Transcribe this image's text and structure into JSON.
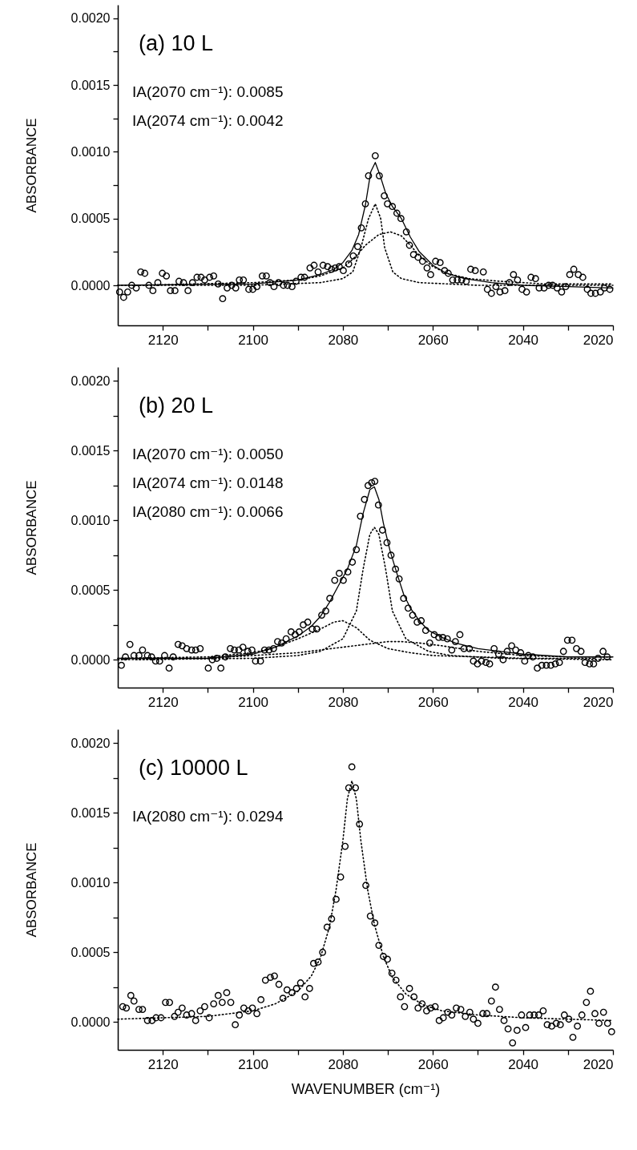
{
  "chart_data": [
    {
      "type": "scatter",
      "title": "(a) 10 L",
      "ylabel": "ABSORBANCE",
      "annotations": [
        "IA(2070 cm⁻¹): 0.0085",
        "IA(2074 cm⁻¹): 0.0042"
      ],
      "xlim": [
        2130,
        2020
      ],
      "ylim": [
        -0.0003,
        0.0021
      ],
      "xticks": [
        {
          "value": 2120,
          "label": "2120"
        },
        {
          "value": 2110,
          "label": null
        },
        {
          "value": 2100,
          "label": "2100"
        },
        {
          "value": 2090,
          "label": null
        },
        {
          "value": 2080,
          "label": "2080"
        },
        {
          "value": 2070,
          "label": null
        },
        {
          "value": 2060,
          "label": "2060"
        },
        {
          "value": 2050,
          "label": null
        },
        {
          "value": 2040,
          "label": "2040"
        },
        {
          "value": 2030,
          "label": null
        },
        {
          "value": 2020,
          "label": "2020"
        }
      ],
      "yticks": [
        {
          "value": 0,
          "label": "0.0000"
        },
        {
          "value": 0.00025,
          "label": null
        },
        {
          "value": 0.0005,
          "label": "0.0005"
        },
        {
          "value": 0.00075,
          "label": null
        },
        {
          "value": 0.001,
          "label": "0.0010"
        },
        {
          "value": 0.00125,
          "label": null
        },
        {
          "value": 0.0015,
          "label": "0.0015"
        },
        {
          "value": 0.00175,
          "label": null
        },
        {
          "value": 0.002,
          "label": "0.0020"
        }
      ],
      "series": [
        {
          "marker": "circle",
          "color": "#000000",
          "x": [
            2129.6,
            2128.7,
            2127.8,
            2126.9,
            2125.9,
            2124.9,
            2124.0,
            2123.1,
            2122.2,
            2121.1,
            2120.1,
            2119.2,
            2118.3,
            2117.3,
            2116.4,
            2115.4,
            2114.4,
            2113.4,
            2112.4,
            2111.5,
            2110.7,
            2109.6,
            2108.7,
            2107.7,
            2106.7,
            2105.7,
            2104.7,
            2103.8,
            2103.0,
            2102.1,
            2100.9,
            2100.0,
            2099.1,
            2097.9,
            2097.0,
            2096.2,
            2095.3,
            2094.3,
            2093.2,
            2092.3,
            2091.3,
            2090.4,
            2089.3,
            2088.5,
            2087.3,
            2086.4,
            2085.5,
            2084.4,
            2083.4,
            2082.5,
            2081.7,
            2080.8,
            2079.9,
            2078.7,
            2077.7,
            2076.7,
            2075.9,
            2075.0,
            2074.3,
            2072.8,
            2071.9,
            2070.8,
            2070.1,
            2069.0,
            2068.0,
            2067.1,
            2065.9,
            2065.2,
            2064.3,
            2063.3,
            2062.3,
            2061.3,
            2060.5,
            2059.4,
            2058.4,
            2057.4,
            2056.6,
            2055.6,
            2054.6,
            2053.6,
            2052.6,
            2051.6,
            2050.6,
            2048.8,
            2047.9,
            2047.0,
            2046.0,
            2045.1,
            2044.0,
            2043.0,
            2042.1,
            2041.2,
            2040.2,
            2039.2,
            2038.2,
            2037.2,
            2036.4,
            2035.3,
            2034.3,
            2033.4,
            2032.4,
            2031.4,
            2030.5,
            2029.6,
            2028.7,
            2027.7,
            2026.7,
            2025.7,
            2024.9,
            2023.9,
            2022.8,
            2021.9,
            2020.7
          ],
          "values": [
            -5e-05,
            -9e-05,
            -5e-05,
            0,
            -2e-05,
            0.0001,
            9e-05,
            0,
            -4e-05,
            2e-05,
            9e-05,
            7e-05,
            -4e-05,
            -4e-05,
            3e-05,
            2e-05,
            -4e-05,
            2e-05,
            6e-05,
            6e-05,
            4e-05,
            6e-05,
            7e-05,
            1e-05,
            -0.0001,
            -2e-05,
            0,
            -2e-05,
            4e-05,
            4e-05,
            -3e-05,
            -3e-05,
            -1e-05,
            7e-05,
            7e-05,
            2e-05,
            -1e-05,
            2e-05,
            0,
            0,
            -1e-05,
            3e-05,
            6e-05,
            6e-05,
            0.00013,
            0.00015,
            0.0001,
            0.00015,
            0.00014,
            0.00012,
            0.00013,
            0.00014,
            0.00011,
            0.00016,
            0.00022,
            0.00029,
            0.00043,
            0.00061,
            0.00082,
            0.00097,
            0.00082,
            0.00067,
            0.00061,
            0.00059,
            0.00054,
            0.0005,
            0.0004,
            0.0003,
            0.00023,
            0.00021,
            0.00018,
            0.00013,
            8e-05,
            0.00018,
            0.00017,
            0.00011,
            9e-05,
            4e-05,
            4e-05,
            4e-05,
            3e-05,
            0.00012,
            0.00011,
            0.0001,
            -3e-05,
            -6e-05,
            -1e-05,
            -5e-05,
            -4e-05,
            2e-05,
            8e-05,
            4e-05,
            -3e-05,
            -5e-05,
            6e-05,
            5e-05,
            -2e-05,
            -2e-05,
            0,
            0,
            -2e-05,
            -5e-05,
            -1e-05,
            8e-05,
            0.00012,
            8e-05,
            6e-05,
            -3e-05,
            -6e-05,
            -6e-05,
            -5e-05,
            -2e-05,
            -3e-05
          ]
        },
        {
          "type": "line",
          "line_style": "solid",
          "color": "#000000",
          "x": [
            2130,
            2100,
            2090,
            2085,
            2082,
            2080,
            2078,
            2076.5,
            2075,
            2073.8,
            2072.8,
            2071.8,
            2070.5,
            2069,
            2067,
            2065,
            2063,
            2060,
            2057,
            2053,
            2047,
            2040,
            2030,
            2020
          ],
          "values": [
            0,
            1e-05,
            4e-05,
            8e-05,
            0.00012,
            0.00017,
            0.00026,
            0.00038,
            0.0006,
            0.00085,
            0.00092,
            0.00083,
            0.00069,
            0.00059,
            0.0005,
            0.00036,
            0.00025,
            0.00015,
            9e-05,
            5e-05,
            2e-05,
            0,
            -1e-05,
            -2e-05
          ]
        },
        {
          "type": "line",
          "line_style": "dotted",
          "color": "#000000",
          "x": [
            2130,
            2100,
            2085,
            2080,
            2077.8,
            2076,
            2074.3,
            2072.8,
            2071.6,
            2070.7,
            2068.9,
            2067,
            2063,
            2050,
            2020
          ],
          "values": [
            0,
            0,
            2e-05,
            5e-05,
            0.0001,
            0.00028,
            0.0005,
            0.00061,
            0.0005,
            0.00028,
            0.0001,
            5e-05,
            2e-05,
            0,
            0
          ]
        },
        {
          "type": "line",
          "line_style": "dotted",
          "color": "#000000",
          "x": [
            2126,
            2100,
            2090,
            2085,
            2080,
            2077,
            2075,
            2072,
            2069.4,
            2067,
            2065,
            2063,
            2060,
            2057,
            2052,
            2045,
            2035,
            2020
          ],
          "values": [
            0,
            2e-05,
            4e-05,
            7e-05,
            0.00013,
            0.00022,
            0.0003,
            0.00038,
            0.0004,
            0.00037,
            0.0003,
            0.00022,
            0.00014,
            9e-05,
            5e-05,
            3e-05,
            1e-05,
            1e-05
          ]
        }
      ]
    },
    {
      "type": "scatter",
      "title": "(b) 20 L",
      "ylabel": "ABSORBANCE",
      "annotations": [
        "IA(2070 cm⁻¹): 0.0050",
        "IA(2074 cm⁻¹): 0.0148",
        "IA(2080 cm⁻¹): 0.0066"
      ],
      "xlim": [
        2130,
        2020
      ],
      "ylim": [
        -0.0002,
        0.0021
      ],
      "xticks": [
        {
          "value": 2120,
          "label": "2120"
        },
        {
          "value": 2110,
          "label": null
        },
        {
          "value": 2100,
          "label": "2100"
        },
        {
          "value": 2090,
          "label": null
        },
        {
          "value": 2080,
          "label": "2080"
        },
        {
          "value": 2070,
          "label": null
        },
        {
          "value": 2060,
          "label": "2060"
        },
        {
          "value": 2050,
          "label": null
        },
        {
          "value": 2040,
          "label": "2040"
        },
        {
          "value": 2030,
          "label": null
        },
        {
          "value": 2020,
          "label": "2020"
        }
      ],
      "yticks": [
        {
          "value": 0,
          "label": "0.0000"
        },
        {
          "value": 0.00025,
          "label": null
        },
        {
          "value": 0.0005,
          "label": "0.0005"
        },
        {
          "value": 0.00075,
          "label": null
        },
        {
          "value": 0.001,
          "label": "0.0010"
        },
        {
          "value": 0.00125,
          "label": null
        },
        {
          "value": 0.0015,
          "label": "0.0015"
        },
        {
          "value": 0.00175,
          "label": null
        },
        {
          "value": 0.002,
          "label": "0.0020"
        }
      ],
      "series": [
        {
          "marker": "circle",
          "color": "#000000",
          "x": [
            2129.2,
            2128.3,
            2127.3,
            2126.4,
            2125.3,
            2124.5,
            2123.4,
            2122.5,
            2121.6,
            2120.7,
            2119.6,
            2118.6,
            2117.7,
            2116.6,
            2115.7,
            2114.7,
            2113.6,
            2112.7,
            2111.7,
            2109.9,
            2109.0,
            2108.0,
            2107.1,
            2106.1,
            2105.0,
            2104.1,
            2103.1,
            2102.2,
            2101.1,
            2100.2,
            2099.4,
            2098.3,
            2097.4,
            2096.4,
            2095.4,
            2094.5,
            2093.6,
            2092.6,
            2091.5,
            2090.6,
            2089.7,
            2088.8,
            2087.8,
            2086.8,
            2085.8,
            2084.7,
            2083.8,
            2082.9,
            2081.8,
            2080.8,
            2079.9,
            2078.9,
            2077.9,
            2077.0,
            2076.1,
            2075.2,
            2074.4,
            2073.6,
            2072.9,
            2072.1,
            2071.2,
            2070.2,
            2069.3,
            2068.3,
            2067.5,
            2066.5,
            2065.5,
            2064.5,
            2063.5,
            2062.6,
            2061.6,
            2060.7,
            2059.7,
            2058.7,
            2057.8,
            2056.8,
            2055.8,
            2055.0,
            2054.0,
            2053.1,
            2051.9,
            2051.0,
            2050.1,
            2049.2,
            2048.2,
            2047.4,
            2046.4,
            2045.4,
            2044.4,
            2043.5,
            2042.5,
            2041.6,
            2040.5,
            2039.6,
            2038.8,
            2037.8,
            2036.8,
            2035.8,
            2034.8,
            2033.8,
            2032.8,
            2031.9,
            2031.0,
            2030.1,
            2029.1,
            2028.1,
            2027.1,
            2026.2,
            2025.2,
            2024.3,
            2023.3,
            2022.2,
            2021.3
          ],
          "values": [
            -4e-05,
            2e-05,
            0.00011,
            3e-05,
            3e-05,
            7e-05,
            3e-05,
            2e-05,
            -1e-05,
            -1e-05,
            3e-05,
            -6e-05,
            2e-05,
            0.00011,
            0.0001,
            8e-05,
            7e-05,
            7e-05,
            8e-05,
            -6e-05,
            0,
            1e-05,
            -6e-05,
            2e-05,
            8e-05,
            7e-05,
            7e-05,
            9e-05,
            6e-05,
            7e-05,
            -1e-05,
            -1e-05,
            7e-05,
            7e-05,
            8e-05,
            0.00013,
            0.00012,
            0.00015,
            0.0002,
            0.00018,
            0.0002,
            0.00025,
            0.00027,
            0.00022,
            0.00022,
            0.00032,
            0.00035,
            0.00044,
            0.00057,
            0.00062,
            0.00057,
            0.00063,
            0.0007,
            0.00079,
            0.00103,
            0.00115,
            0.00125,
            0.00127,
            0.00128,
            0.00111,
            0.00093,
            0.00084,
            0.00075,
            0.00065,
            0.00058,
            0.00044,
            0.00037,
            0.00032,
            0.00027,
            0.00028,
            0.00021,
            0.00012,
            0.00018,
            0.00016,
            0.00016,
            0.00015,
            7e-05,
            0.00013,
            0.00018,
            8e-05,
            8e-05,
            -1e-05,
            -3e-05,
            -1e-05,
            -2e-05,
            -3e-05,
            8e-05,
            4e-05,
            0,
            6e-05,
            0.0001,
            7e-05,
            5e-05,
            -1e-05,
            3e-05,
            2e-05,
            -6e-05,
            -4e-05,
            -4e-05,
            -4e-05,
            -3e-05,
            -2e-05,
            6e-05,
            0.00014,
            0.00014,
            8e-05,
            6e-05,
            -2e-05,
            -3e-05,
            -3e-05,
            1e-05,
            6e-05,
            2e-05
          ]
        },
        {
          "type": "line",
          "line_style": "solid",
          "color": "#000000",
          "x": [
            2130,
            2110,
            2100,
            2095,
            2090,
            2087,
            2085,
            2083,
            2081,
            2079,
            2077,
            2075.5,
            2074,
            2073,
            2072,
            2071,
            2069.5,
            2068,
            2066.5,
            2065,
            2063,
            2061,
            2058,
            2055,
            2050,
            2045,
            2040,
            2030,
            2020
          ],
          "values": [
            1e-05,
            1e-05,
            4e-05,
            9e-05,
            0.00017,
            0.00024,
            0.00031,
            0.00041,
            0.00053,
            0.00065,
            0.00082,
            0.00105,
            0.00122,
            0.00124,
            0.00115,
            0.00098,
            0.00078,
            0.00062,
            0.00047,
            0.00037,
            0.00028,
            0.00021,
            0.00016,
            0.00012,
            8e-05,
            6e-05,
            4e-05,
            2e-05,
            2e-05
          ]
        },
        {
          "type": "line",
          "line_style": "dotted",
          "color": "#000000",
          "x": [
            2130,
            2100,
            2090,
            2085,
            2080,
            2077,
            2075.5,
            2074,
            2073,
            2072,
            2070.5,
            2069,
            2066,
            2061,
            2056,
            2045,
            2020
          ],
          "values": [
            0,
            1e-05,
            3e-05,
            6e-05,
            0.00015,
            0.00035,
            0.00065,
            0.0009,
            0.00095,
            0.0009,
            0.00065,
            0.00035,
            0.00015,
            6e-05,
            3e-05,
            1e-05,
            0
          ]
        },
        {
          "type": "line",
          "line_style": "dotted",
          "color": "#000000",
          "x": [
            2130,
            2110,
            2100,
            2095,
            2090,
            2085,
            2082,
            2080,
            2077,
            2074,
            2070,
            2065,
            2060,
            2050,
            2040,
            2024
          ],
          "values": [
            1e-05,
            2e-05,
            5e-05,
            9e-05,
            0.00015,
            0.00022,
            0.00027,
            0.00028,
            0.00023,
            0.00014,
            8e-05,
            5e-05,
            3e-05,
            2e-05,
            1e-05,
            1e-05
          ]
        },
        {
          "type": "line",
          "line_style": "dotted",
          "color": "#000000",
          "x": [
            2126,
            2110,
            2100,
            2090,
            2080,
            2075,
            2070,
            2067,
            2063,
            2058,
            2050,
            2040,
            2030,
            2020
          ],
          "values": [
            0,
            1e-05,
            3e-05,
            5e-05,
            9e-05,
            0.00011,
            0.00013,
            0.00013,
            0.00012,
            0.0001,
            6e-05,
            3e-05,
            2e-05,
            2e-05
          ]
        }
      ]
    },
    {
      "type": "scatter",
      "title": "(c) 10000 L",
      "xlabel": "WAVENUMBER (cm⁻¹)",
      "ylabel": "ABSORBANCE",
      "annotations": [
        "IA(2080 cm⁻¹): 0.0294"
      ],
      "xlim": [
        2130,
        2020
      ],
      "ylim": [
        -0.0002,
        0.0021
      ],
      "xticks": [
        {
          "value": 2120,
          "label": "2120"
        },
        {
          "value": 2110,
          "label": null
        },
        {
          "value": 2100,
          "label": "2100"
        },
        {
          "value": 2090,
          "label": null
        },
        {
          "value": 2080,
          "label": "2080"
        },
        {
          "value": 2070,
          "label": null
        },
        {
          "value": 2060,
          "label": "2060"
        },
        {
          "value": 2050,
          "label": null
        },
        {
          "value": 2040,
          "label": "2040"
        },
        {
          "value": 2030,
          "label": null
        },
        {
          "value": 2020,
          "label": "2020"
        }
      ],
      "yticks": [
        {
          "value": 0,
          "label": "0.0000"
        },
        {
          "value": 0.00025,
          "label": null
        },
        {
          "value": 0.0005,
          "label": "0.0005"
        },
        {
          "value": 0.00075,
          "label": null
        },
        {
          "value": 0.001,
          "label": "0.0010"
        },
        {
          "value": 0.00125,
          "label": null
        },
        {
          "value": 0.0015,
          "label": "0.0015"
        },
        {
          "value": 0.00175,
          "label": null
        },
        {
          "value": 0.002,
          "label": "0.0020"
        }
      ],
      "series": [
        {
          "marker": "circle",
          "color": "#000000",
          "x": [
            2128.9,
            2128.1,
            2127.1,
            2126.4,
            2125.3,
            2124.5,
            2123.4,
            2122.4,
            2121.5,
            2120.4,
            2119.4,
            2118.5,
            2117.4,
            2116.6,
            2115.7,
            2114.7,
            2113.6,
            2112.7,
            2111.7,
            2110.7,
            2109.7,
            2108.7,
            2107.7,
            2106.8,
            2105.8,
            2104.9,
            2103.9,
            2103.0,
            2102.0,
            2101.0,
            2100.1,
            2099.1,
            2098.2,
            2097.2,
            2096.1,
            2095.2,
            2094.2,
            2093.3,
            2092.4,
            2091.3,
            2090.3,
            2089.4,
            2088.4,
            2087.4,
            2086.5,
            2085.5,
            2084.5,
            2083.5,
            2082.5,
            2081.5,
            2080.5,
            2079.5,
            2078.7,
            2078.0,
            2077.2,
            2076.3,
            2074.9,
            2073.9,
            2072.9,
            2072.0,
            2071.0,
            2070.1,
            2069.1,
            2068.2,
            2067.2,
            2066.3,
            2065.2,
            2064.2,
            2063.3,
            2062.4,
            2061.4,
            2060.5,
            2059.5,
            2058.6,
            2057.7,
            2056.7,
            2055.8,
            2054.8,
            2053.8,
            2052.8,
            2051.8,
            2051.0,
            2050.0,
            2048.9,
            2048.0,
            2047.0,
            2046.1,
            2045.2,
            2044.2,
            2043.3,
            2042.3,
            2041.3,
            2040.3,
            2039.4,
            2038.5,
            2037.5,
            2036.5,
            2035.5,
            2034.6,
            2033.6,
            2032.6,
            2031.7,
            2030.8,
            2029.8,
            2028.9,
            2027.9,
            2026.9,
            2025.9,
            2025.0,
            2024.0,
            2023.1,
            2022.1,
            2021.2,
            2020.3
          ],
          "values": [
            0.00011,
            0.0001,
            0.00019,
            0.00015,
            9e-05,
            9e-05,
            1e-05,
            1e-05,
            3e-05,
            3e-05,
            0.00014,
            0.00014,
            4e-05,
            7e-05,
            0.0001,
            5e-05,
            6e-05,
            1e-05,
            8e-05,
            0.00011,
            3e-05,
            0.00013,
            0.00019,
            0.00014,
            0.00021,
            0.00014,
            -2e-05,
            5e-05,
            0.0001,
            8e-05,
            0.0001,
            6e-05,
            0.00016,
            0.0003,
            0.00032,
            0.00033,
            0.00027,
            0.00017,
            0.00023,
            0.00021,
            0.00024,
            0.00028,
            0.00018,
            0.00024,
            0.00042,
            0.00043,
            0.0005,
            0.00068,
            0.00074,
            0.00088,
            0.00104,
            0.00126,
            0.00168,
            0.00183,
            0.00168,
            0.00142,
            0.00098,
            0.00076,
            0.00071,
            0.00055,
            0.00047,
            0.00045,
            0.00035,
            0.0003,
            0.00018,
            0.00011,
            0.00024,
            0.00018,
            0.0001,
            0.00013,
            8e-05,
            0.0001,
            0.00011,
            1e-05,
            3e-05,
            7e-05,
            5e-05,
            0.0001,
            9e-05,
            4e-05,
            7e-05,
            2e-05,
            -1e-05,
            6e-05,
            6e-05,
            0.00015,
            0.00025,
            9e-05,
            1e-05,
            -5e-05,
            -0.00015,
            -6e-05,
            5e-05,
            -4e-05,
            5e-05,
            5e-05,
            5e-05,
            8e-05,
            -2e-05,
            -3e-05,
            -1e-05,
            -2e-05,
            5e-05,
            2e-05,
            -0.00011,
            -3e-05,
            5e-05,
            0.00014,
            0.00022,
            6e-05,
            -1e-05,
            7e-05,
            -1e-05,
            -7e-05
          ]
        },
        {
          "type": "line",
          "line_style": "dotted",
          "color": "#000000",
          "x": [
            2130,
            2120,
            2110,
            2105,
            2100,
            2095,
            2090,
            2087,
            2085,
            2083,
            2081.5,
            2080,
            2079,
            2078,
            2077,
            2076,
            2074.5,
            2073,
            2071,
            2069,
            2066,
            2062,
            2058,
            2050,
            2040,
            2030,
            2020
          ],
          "values": [
            2e-05,
            3e-05,
            4e-05,
            6e-05,
            8e-05,
            0.00013,
            0.00022,
            0.00033,
            0.00046,
            0.00068,
            0.00095,
            0.0013,
            0.0016,
            0.00173,
            0.0016,
            0.0013,
            0.00095,
            0.0007,
            0.00047,
            0.00032,
            0.0002,
            0.00012,
            8e-05,
            5e-05,
            3e-05,
            2e-05,
            1e-05
          ]
        }
      ]
    }
  ]
}
